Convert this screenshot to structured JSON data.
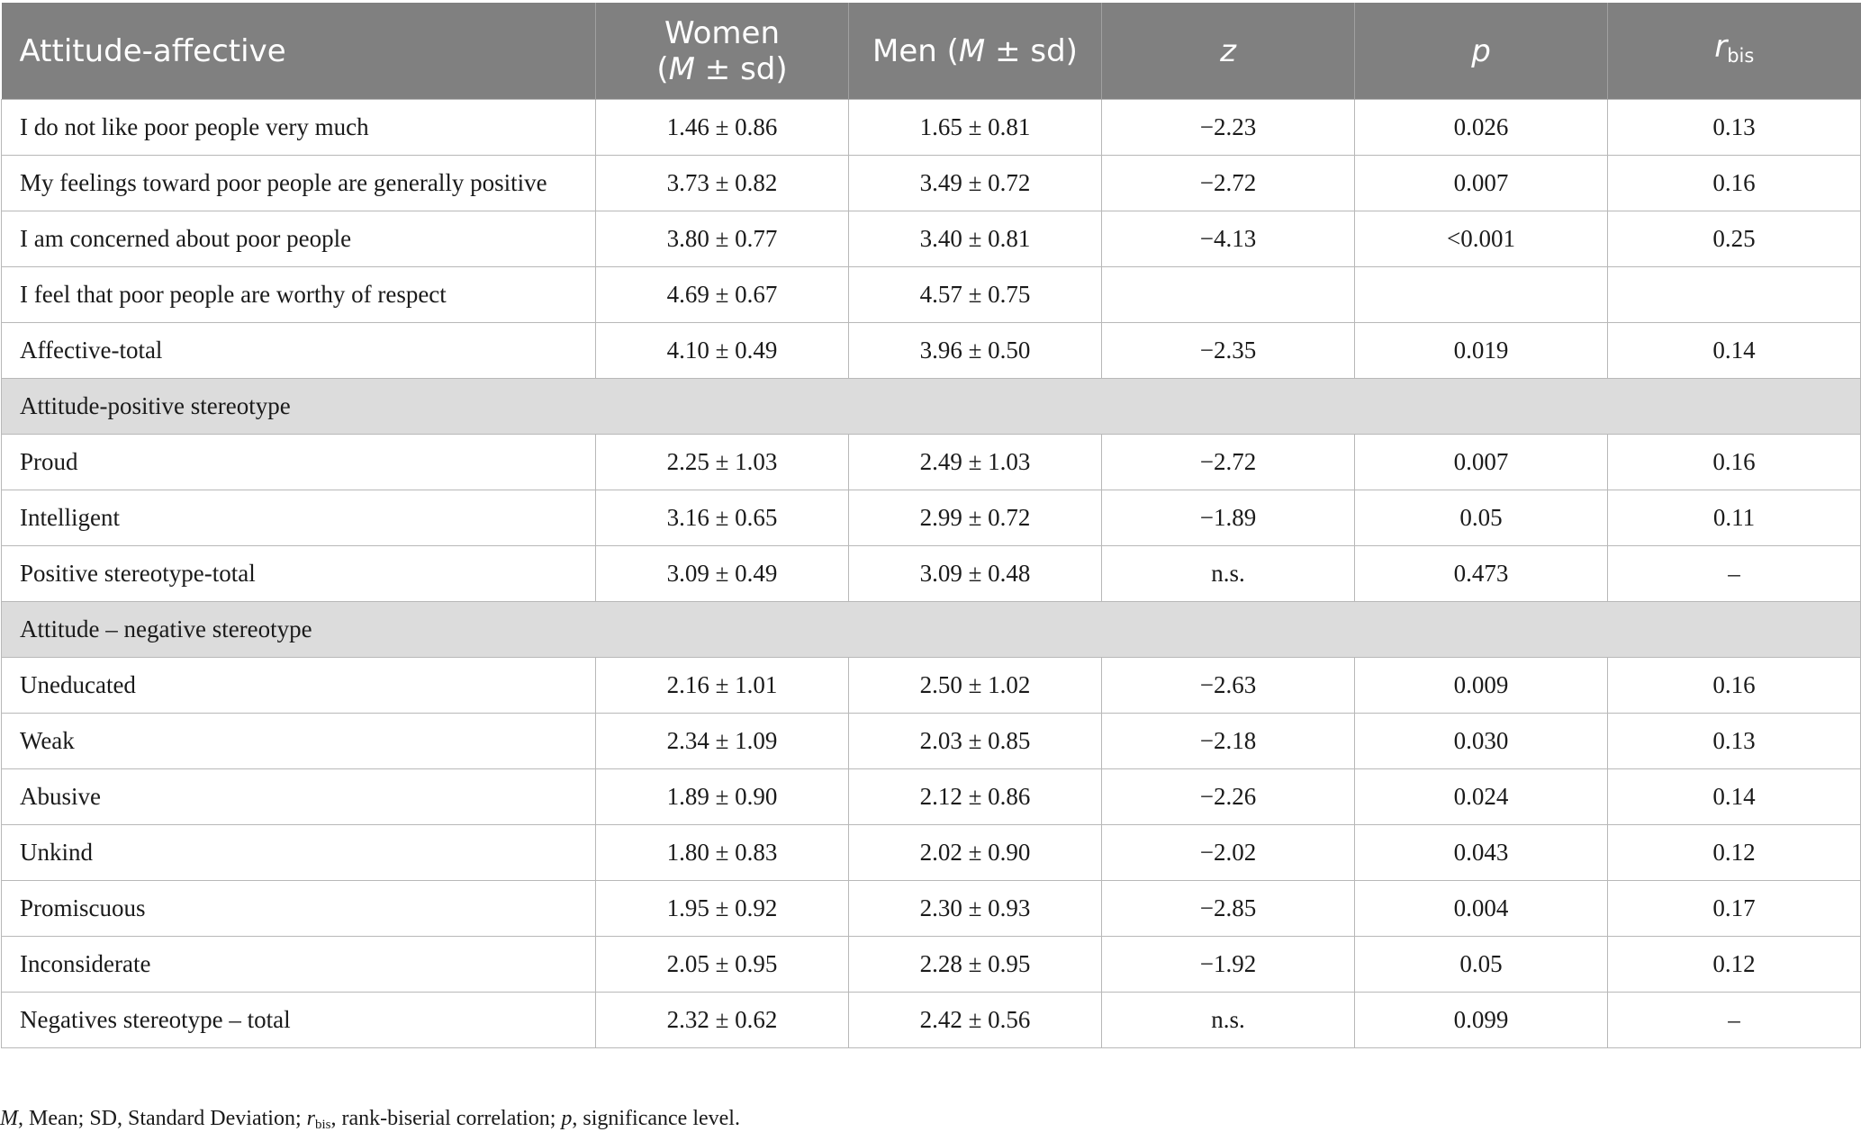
{
  "header": {
    "col0": "Attitude-affective",
    "women_line1": "Women",
    "women_line2_open": "(",
    "women_line2_M": "M",
    "women_line2_rest": " ± sd)",
    "men_prefix": "Men (",
    "men_M": "M",
    "men_rest": " ± sd)",
    "z": "z",
    "p": "p",
    "r": "r",
    "r_sub": "bis"
  },
  "rows": [
    {
      "type": "data",
      "label": "I do not like poor people very much",
      "women": "1.46 ± 0.86",
      "men": "1.65 ± 0.81",
      "z": "−2.23",
      "p": "0.026",
      "r": "0.13"
    },
    {
      "type": "data",
      "label": "My feelings toward poor people are generally positive",
      "women": "3.73 ± 0.82",
      "men": "3.49 ± 0.72",
      "z": "−2.72",
      "p": "0.007",
      "r": "0.16"
    },
    {
      "type": "data",
      "label": "I am concerned about poor people",
      "women": "3.80 ± 0.77",
      "men": "3.40 ± 0.81",
      "z": "−4.13",
      "p": "<0.001",
      "r": "0.25"
    },
    {
      "type": "data",
      "label": "I feel that poor people are worthy of respect",
      "women": "4.69 ± 0.67",
      "men": "4.57 ± 0.75",
      "z": "",
      "p": "",
      "r": ""
    },
    {
      "type": "data",
      "label": "Affective-total",
      "women": "4.10 ± 0.49",
      "men": "3.96 ± 0.50",
      "z": "−2.35",
      "p": "0.019",
      "r": "0.14"
    },
    {
      "type": "section",
      "label": "Attitude-positive stereotype"
    },
    {
      "type": "data",
      "label": "Proud",
      "women": "2.25 ± 1.03",
      "men": "2.49 ± 1.03",
      "z": "−2.72",
      "p": "0.007",
      "r": "0.16"
    },
    {
      "type": "data",
      "label": "Intelligent",
      "women": "3.16 ± 0.65",
      "men": "2.99 ± 0.72",
      "z": "−1.89",
      "p": "0.05",
      "r": "0.11"
    },
    {
      "type": "data",
      "label": "Positive stereotype-total",
      "women": "3.09 ± 0.49",
      "men": "3.09 ± 0.48",
      "z": "n.s.",
      "p": "0.473",
      "r": "–"
    },
    {
      "type": "section",
      "label": "Attitude – negative stereotype"
    },
    {
      "type": "data",
      "label": "Uneducated",
      "women": "2.16 ± 1.01",
      "men": "2.50 ± 1.02",
      "z": "−2.63",
      "p": "0.009",
      "r": "0.16"
    },
    {
      "type": "data",
      "label": "Weak",
      "women": "2.34 ± 1.09",
      "men": "2.03 ± 0.85",
      "z": "−2.18",
      "p": "0.030",
      "r": "0.13"
    },
    {
      "type": "data",
      "label": "Abusive",
      "women": "1.89 ± 0.90",
      "men": "2.12 ± 0.86",
      "z": "−2.26",
      "p": "0.024",
      "r": "0.14"
    },
    {
      "type": "data",
      "label": "Unkind",
      "women": "1.80 ± 0.83",
      "men": "2.02 ± 0.90",
      "z": "−2.02",
      "p": "0.043",
      "r": "0.12"
    },
    {
      "type": "data",
      "label": "Promiscuous",
      "women": "1.95 ± 0.92",
      "men": "2.30 ± 0.93",
      "z": "−2.85",
      "p": "0.004",
      "r": "0.17"
    },
    {
      "type": "data",
      "label": "Inconsiderate",
      "women": "2.05 ± 0.95",
      "men": "2.28 ± 0.95",
      "z": "−1.92",
      "p": "0.05",
      "r": "0.12"
    },
    {
      "type": "data",
      "label": "Negatives stereotype – total",
      "women": "2.32 ± 0.62",
      "men": "2.42 ± 0.56",
      "z": "n.s.",
      "p": "0.099",
      "r": "–"
    }
  ],
  "footnote": {
    "m": "M",
    "m_text": ", Mean; SD, Standard Deviation; ",
    "r": "r",
    "r_sub": "bis",
    "r_text": ", rank-biserial correlation; ",
    "p": "p",
    "p_text": ", significance level."
  }
}
